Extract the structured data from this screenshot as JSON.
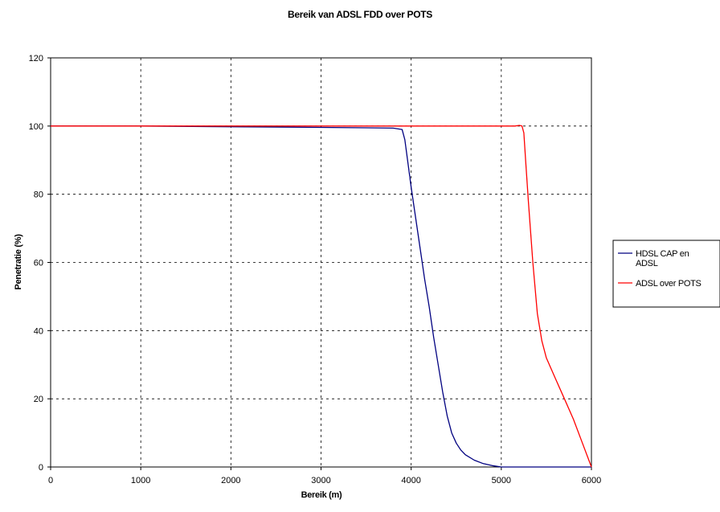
{
  "chart_data": {
    "type": "line",
    "title": "Bereik van ADSL FDD over POTS",
    "xlabel": "Bereik (m)",
    "ylabel": "Penetratie (%)",
    "xlim": [
      0,
      6000
    ],
    "ylim": [
      0,
      120
    ],
    "x_ticks": [
      0,
      1000,
      2000,
      3000,
      4000,
      5000,
      6000
    ],
    "y_ticks": [
      0,
      20,
      40,
      60,
      80,
      100,
      120
    ],
    "grid": true,
    "legend_position": "right",
    "series": [
      {
        "name": "HDSL CAP en ADSL",
        "color": "#000080",
        "x": [
          0,
          1000,
          2000,
          3000,
          3500,
          3800,
          3900,
          3930,
          3960,
          4000,
          4050,
          4100,
          4150,
          4200,
          4250,
          4300,
          4350,
          4400,
          4450,
          4500,
          4550,
          4600,
          4700,
          4800,
          4900,
          5000,
          5500,
          6000
        ],
        "y": [
          100,
          100,
          99.8,
          99.6,
          99.5,
          99.4,
          99,
          96,
          90,
          82,
          73,
          64,
          55,
          47,
          38,
          30,
          22,
          15,
          10,
          7,
          5,
          3.6,
          2,
          1,
          0.4,
          0,
          0,
          0
        ]
      },
      {
        "name": "ADSL over POTS",
        "color": "#ff0000",
        "x": [
          0,
          1000,
          2000,
          3000,
          4000,
          5000,
          5150,
          5200,
          5230,
          5250,
          5270,
          5300,
          5350,
          5400,
          5450,
          5500,
          5600,
          5700,
          5800,
          5900,
          6000
        ],
        "y": [
          100,
          100,
          100,
          100,
          100,
          100,
          100,
          100.2,
          100,
          98,
          90,
          78,
          60,
          45,
          37,
          32,
          26,
          20,
          14,
          7,
          0
        ]
      }
    ]
  }
}
